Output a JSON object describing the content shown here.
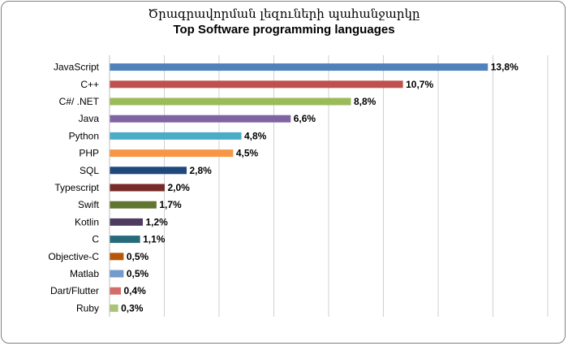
{
  "chart_data": {
    "type": "bar",
    "orientation": "horizontal",
    "title": "Ծրագրավորման լեզուների պահանջարկը",
    "subtitle": "Top Software programming languages",
    "categories": [
      "JavaScript",
      "C++",
      "C#/ .NET",
      "Java",
      "Python",
      "PHP",
      "SQL",
      "Typescript",
      "Swift",
      "Kotlin",
      "C",
      "Objective-C",
      "Matlab",
      "Dart/Flutter",
      "Ruby"
    ],
    "values": [
      13.8,
      10.7,
      8.8,
      6.6,
      4.8,
      4.5,
      2.8,
      2.0,
      1.7,
      1.2,
      1.1,
      0.5,
      0.5,
      0.4,
      0.3
    ],
    "value_labels": [
      "13,8%",
      "10,7%",
      "8,8%",
      "6,6%",
      "4,8%",
      "4,5%",
      "2,8%",
      "2,0%",
      "1,7%",
      "1,2%",
      "1,1%",
      "0,5%",
      "0,5%",
      "0,4%",
      "0,3%"
    ],
    "colors": [
      "#4f81bd",
      "#c0504d",
      "#9bbb59",
      "#8064a2",
      "#4bacc6",
      "#f79646",
      "#1f497d",
      "#772c2a",
      "#5f7530",
      "#4d3b62",
      "#276a7c",
      "#b65708",
      "#729aca",
      "#d16e6b",
      "#a9c574"
    ],
    "xlim": [
      0,
      16
    ],
    "gridlines": true,
    "x_tick_labels_visible": false,
    "legend": "none"
  }
}
